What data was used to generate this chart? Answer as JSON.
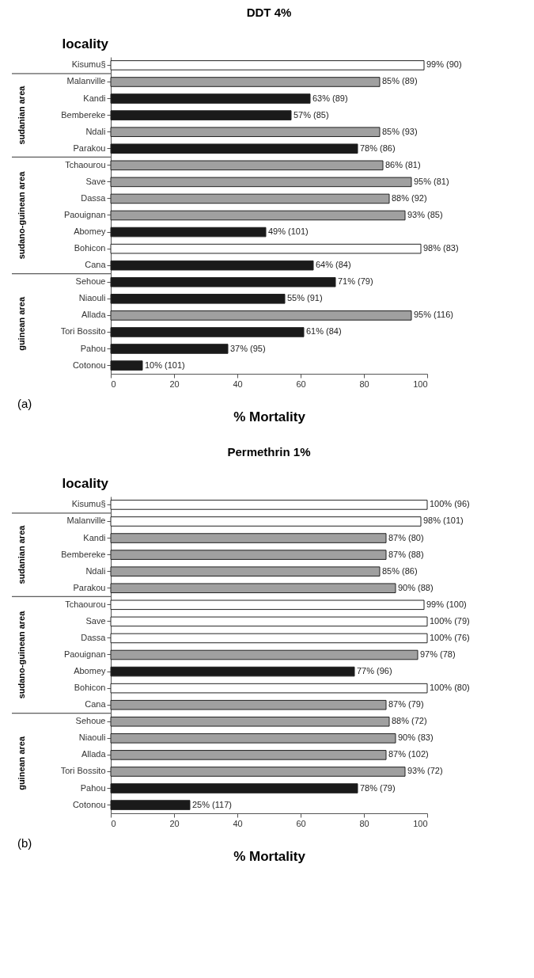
{
  "chart_data": [
    {
      "type": "bar",
      "orientation": "horizontal",
      "title": "DDT 4%",
      "xlabel": "% Mortality",
      "ylabel": "locality",
      "categories": [
        "Kisumu§",
        "Malanville",
        "Kandi",
        "Bembereke",
        "Ndali",
        "Parakou",
        "Tchaourou",
        "Save",
        "Dassa",
        "Paouignan",
        "Abomey",
        "Bohicon",
        "Cana",
        "Sehoue",
        "Niaouli",
        "Allada",
        "Tori Bossito",
        "Pahou",
        "Cotonou"
      ],
      "values": [
        99,
        85,
        63,
        57,
        85,
        78,
        86,
        95,
        88,
        93,
        49,
        98,
        64,
        71,
        55,
        95,
        61,
        37,
        10
      ],
      "colors": [
        "#ffffff",
        "#a0a0a0",
        "#1a1a1a",
        "#1a1a1a",
        "#a0a0a0",
        "#1a1a1a",
        "#a0a0a0",
        "#a0a0a0",
        "#a0a0a0",
        "#a0a0a0",
        "#1a1a1a",
        "#ffffff",
        "#1a1a1a",
        "#1a1a1a",
        "#1a1a1a",
        "#a0a0a0",
        "#1a1a1a",
        "#1a1a1a",
        "#1a1a1a"
      ],
      "value_labels": [
        "99% (90)",
        "85% (89)",
        "63% (89)",
        "57% (85)",
        "85% (93)",
        "78% (86)",
        "86% (81)",
        "95% (81)",
        "88% (92)",
        "93% (85)",
        "49% (101)",
        "98% (83)",
        "64% (84)",
        "71% (79)",
        "55% (91)",
        "95% (116)",
        "61% (84)",
        "37% (95)",
        "10% (101)"
      ],
      "xlim": [
        0,
        100
      ],
      "xticks": [
        0,
        20,
        40,
        60,
        80,
        100
      ],
      "grid": false,
      "annotations": [
        "sudanian area",
        "sudano-guinean area",
        "guinean area",
        "(a)"
      ]
    },
    {
      "type": "bar",
      "orientation": "horizontal",
      "title": "Permethrin 1%",
      "xlabel": "% Mortality",
      "ylabel": "locality",
      "categories": [
        "Kisumu§",
        "Malanville",
        "Kandi",
        "Bembereke",
        "Ndali",
        "Parakou",
        "Tchaourou",
        "Save",
        "Dassa",
        "Paouignan",
        "Abomey",
        "Bohicon",
        "Cana",
        "Sehoue",
        "Niaouli",
        "Allada",
        "Tori Bossito",
        "Pahou",
        "Cotonou"
      ],
      "values": [
        100,
        98,
        87,
        87,
        85,
        90,
        99,
        100,
        100,
        97,
        77,
        100,
        87,
        88,
        90,
        87,
        93,
        78,
        25
      ],
      "colors": [
        "#ffffff",
        "#ffffff",
        "#a0a0a0",
        "#a0a0a0",
        "#a0a0a0",
        "#a0a0a0",
        "#ffffff",
        "#ffffff",
        "#ffffff",
        "#a0a0a0",
        "#1a1a1a",
        "#ffffff",
        "#a0a0a0",
        "#a0a0a0",
        "#a0a0a0",
        "#a0a0a0",
        "#a0a0a0",
        "#1a1a1a",
        "#1a1a1a"
      ],
      "value_labels": [
        "100% (96)",
        "98% (101)",
        "87% (80)",
        "87% (88)",
        "85% (86)",
        "90% (88)",
        "99% (100)",
        "100% (79)",
        "100% (76)",
        "97% (78)",
        "77% (96)",
        "100% (80)",
        "87% (79)",
        "88% (72)",
        "90% (83)",
        "87% (102)",
        "93% (72)",
        "78% (79)",
        "25% (117)"
      ],
      "xlim": [
        0,
        100
      ],
      "xticks": [
        0,
        20,
        40,
        60,
        80,
        100
      ],
      "grid": false,
      "annotations": [
        "sudanian area",
        "sudano-guinean area",
        "guinean area",
        "(b)"
      ]
    }
  ]
}
